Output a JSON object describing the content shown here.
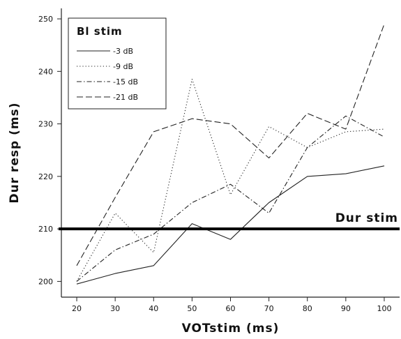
{
  "chart_data": {
    "type": "line",
    "xlabel": "VOTstim (ms)",
    "ylabel": "Dur resp (ms)",
    "xlim": [
      16,
      104
    ],
    "ylim": [
      197,
      252
    ],
    "x_ticks": [
      "20",
      "30",
      "40",
      "50",
      "60",
      "70",
      "80",
      "90",
      "100"
    ],
    "y_ticks": [
      "200",
      "210",
      "220",
      "230",
      "240",
      "250"
    ],
    "grid": false,
    "legend": {
      "title": "Bl stim",
      "placement": "top-left"
    },
    "series": [
      {
        "name": "-3 dB",
        "style": "solid",
        "x": [
          20,
          30,
          40,
          50,
          60,
          70,
          80,
          90,
          100
        ],
        "y": [
          199.5,
          201.5,
          203,
          211,
          208,
          215,
          220,
          220.5,
          222
        ]
      },
      {
        "name": "-9 dB",
        "style": "dotted",
        "x": [
          20,
          30,
          40,
          50,
          60,
          70,
          80,
          90,
          100
        ],
        "y": [
          200,
          213,
          205.5,
          238.5,
          216.5,
          229.5,
          225.5,
          228.5,
          229
        ]
      },
      {
        "name": "-15 dB",
        "style": "dashdot",
        "x": [
          20,
          25,
          30,
          40,
          50,
          60,
          70,
          80,
          90,
          100
        ],
        "y": [
          200,
          203,
          206,
          209,
          215,
          218.5,
          213,
          225.5,
          231.5,
          227.5
        ]
      },
      {
        "name": "-21 dB",
        "style": "dashed",
        "x": [
          20,
          30,
          40,
          50,
          60,
          70,
          80,
          90,
          100
        ],
        "y": [
          203,
          216,
          228.5,
          231,
          230,
          223.5,
          232,
          229,
          249
        ]
      }
    ],
    "reference_line": {
      "label": "Dur stim",
      "y": 210
    }
  }
}
